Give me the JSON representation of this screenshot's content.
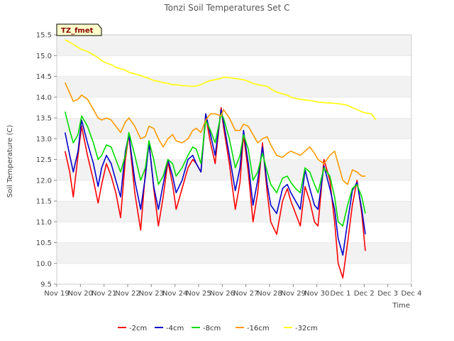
{
  "chart_data": {
    "type": "line",
    "title": "Tonzi Soil Temperatures Set C",
    "xlabel": "Time",
    "ylabel": "Soil Temperature (C)",
    "tag": "TZ_fmet",
    "ylim": [
      9.5,
      15.5
    ],
    "xlim": [
      0,
      15
    ],
    "yticks": [
      9.5,
      10.0,
      10.5,
      11.0,
      11.5,
      12.0,
      12.5,
      13.0,
      13.5,
      14.0,
      14.5,
      15.0,
      15.5
    ],
    "xtick_labels": [
      "Nov 19",
      "Nov 20",
      "Nov 21",
      "Nov 22",
      "Nov 23",
      "Nov 24",
      "Nov 25",
      "Nov 26",
      "Nov 27",
      "Nov 28",
      "Nov 29",
      "Nov 30",
      "Dec 1",
      "Dec 2",
      "Dec 3",
      "Dec 4"
    ],
    "x": [
      0.35,
      0.55,
      0.7,
      0.9,
      1.05,
      1.3,
      1.55,
      1.75,
      1.9,
      2.1,
      2.3,
      2.5,
      2.7,
      2.9,
      3.05,
      3.3,
      3.55,
      3.75,
      3.9,
      4.1,
      4.3,
      4.5,
      4.7,
      4.9,
      5.05,
      5.3,
      5.55,
      5.75,
      5.9,
      6.1,
      6.3,
      6.5,
      6.7,
      6.95,
      7.05,
      7.3,
      7.55,
      7.75,
      7.9,
      8.1,
      8.3,
      8.5,
      8.7,
      8.9,
      9.05,
      9.3,
      9.55,
      9.75,
      9.9,
      10.1,
      10.3,
      10.5,
      10.7,
      10.9,
      11.05,
      11.3,
      11.55,
      11.75,
      11.9,
      12.1,
      12.3,
      12.5,
      12.7,
      12.9,
      13.05,
      13.3,
      13.5,
      13.7,
      13.9,
      14.1,
      14.3,
      14.45
    ],
    "series": [
      {
        "name": "-2cm",
        "color": "#ff0000",
        "values": [
          12.7,
          12.2,
          11.6,
          12.6,
          13.3,
          12.6,
          12.0,
          11.45,
          11.9,
          12.4,
          12.1,
          11.7,
          11.1,
          12.5,
          13.1,
          11.7,
          10.8,
          12.2,
          12.95,
          11.8,
          10.9,
          11.6,
          12.45,
          11.9,
          11.3,
          11.8,
          12.3,
          12.5,
          12.4,
          12.2,
          13.55,
          12.9,
          12.4,
          13.75,
          13.3,
          12.4,
          11.3,
          11.95,
          13.1,
          12.2,
          11.0,
          11.7,
          12.9,
          11.7,
          11.0,
          10.7,
          11.5,
          11.8,
          11.5,
          11.2,
          10.9,
          11.85,
          11.5,
          11.0,
          10.9,
          12.5,
          12.0,
          11.0,
          10.0,
          9.65,
          10.5,
          11.4,
          12.0,
          11.2,
          10.3,
          null,
          null,
          null,
          null,
          null,
          null,
          null
        ]
      },
      {
        "name": "-4cm",
        "color": "#0000cc",
        "values": [
          13.15,
          12.6,
          12.2,
          12.7,
          13.45,
          12.9,
          12.4,
          11.85,
          12.3,
          12.6,
          12.4,
          12.0,
          11.6,
          12.7,
          13.1,
          12.0,
          11.3,
          12.1,
          12.9,
          11.85,
          11.3,
          11.9,
          12.5,
          12.1,
          11.7,
          12.0,
          12.5,
          12.6,
          12.4,
          12.2,
          13.6,
          13.1,
          12.6,
          13.7,
          13.4,
          12.6,
          11.75,
          12.3,
          13.2,
          12.4,
          11.4,
          12.0,
          12.8,
          11.9,
          11.4,
          11.2,
          11.8,
          11.9,
          11.7,
          11.5,
          11.3,
          12.25,
          11.8,
          11.4,
          11.3,
          12.35,
          11.8,
          11.3,
          10.6,
          10.2,
          11.0,
          11.75,
          11.95,
          11.3,
          10.7,
          null,
          null,
          null,
          null,
          null,
          null,
          null
        ]
      },
      {
        "name": "-8cm",
        "color": "#00dd00",
        "values": [
          13.65,
          13.2,
          12.9,
          13.1,
          13.55,
          13.3,
          12.9,
          12.5,
          12.6,
          12.85,
          12.8,
          12.5,
          12.2,
          12.6,
          13.15,
          12.6,
          12.0,
          12.3,
          12.95,
          12.5,
          11.9,
          12.1,
          12.5,
          12.4,
          12.1,
          12.3,
          12.6,
          12.8,
          12.75,
          12.4,
          13.45,
          13.2,
          12.9,
          13.6,
          13.5,
          13.0,
          12.3,
          12.6,
          13.1,
          12.75,
          12.0,
          12.2,
          12.65,
          12.2,
          11.9,
          11.7,
          12.05,
          12.1,
          11.95,
          11.8,
          11.7,
          12.3,
          12.2,
          11.9,
          11.7,
          12.3,
          12.1,
          11.6,
          11.0,
          10.9,
          11.4,
          11.8,
          11.9,
          11.6,
          11.2,
          null,
          null,
          null,
          null,
          null,
          null,
          null
        ]
      },
      {
        "name": "-16cm",
        "color": "#ff9900",
        "values": [
          14.35,
          14.1,
          13.9,
          13.95,
          14.05,
          13.95,
          13.7,
          13.5,
          13.45,
          13.5,
          13.45,
          13.3,
          13.15,
          13.4,
          13.5,
          13.3,
          13.0,
          13.05,
          13.3,
          13.25,
          13.0,
          12.8,
          13.0,
          13.1,
          12.95,
          12.9,
          13.0,
          13.2,
          13.25,
          13.15,
          13.45,
          13.6,
          13.6,
          13.55,
          13.7,
          13.5,
          13.2,
          13.2,
          13.35,
          13.3,
          13.1,
          12.9,
          13.0,
          13.05,
          12.85,
          12.6,
          12.55,
          12.65,
          12.7,
          12.65,
          12.6,
          12.7,
          12.8,
          12.65,
          12.5,
          12.4,
          12.6,
          12.7,
          12.4,
          12.0,
          11.9,
          12.25,
          12.2,
          12.1,
          12.1,
          null,
          null,
          null,
          null,
          null,
          null,
          null
        ]
      },
      {
        "name": "-32cm",
        "color": "#ffff00",
        "values": [
          15.38,
          15.32,
          15.27,
          15.2,
          15.15,
          15.1,
          15.02,
          14.95,
          14.88,
          14.82,
          14.78,
          14.72,
          14.68,
          14.65,
          14.6,
          14.56,
          14.52,
          14.48,
          14.45,
          14.4,
          14.38,
          14.35,
          14.33,
          14.3,
          14.3,
          14.28,
          14.27,
          14.26,
          14.27,
          14.3,
          14.36,
          14.4,
          14.42,
          14.45,
          14.48,
          14.47,
          14.45,
          14.43,
          14.42,
          14.38,
          14.33,
          14.3,
          14.28,
          14.26,
          14.2,
          14.12,
          14.08,
          14.05,
          14.0,
          13.97,
          13.95,
          13.93,
          13.92,
          13.9,
          13.88,
          13.87,
          13.86,
          13.85,
          13.84,
          13.83,
          13.8,
          13.75,
          13.7,
          13.65,
          13.62,
          13.6,
          13.45,
          null,
          null,
          null,
          null,
          null
        ]
      }
    ]
  }
}
